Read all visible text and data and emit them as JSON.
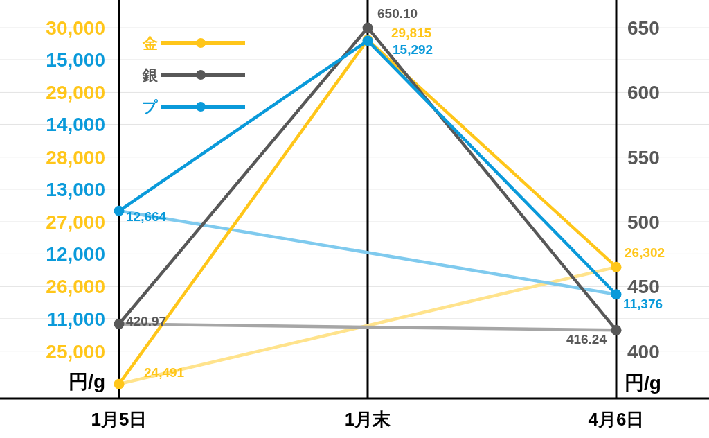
{
  "chart_data": {
    "type": "line",
    "categories": [
      "1月5日",
      "1月末",
      "4月6日"
    ],
    "ylabel": "円/g",
    "y2label": "円/g",
    "ylim": [
      24300,
      30430
    ],
    "yticks": [
      {
        "value": 25000,
        "label": "25,000"
      },
      {
        "value": 26000,
        "label": "26,000"
      },
      {
        "value": 27000,
        "label": "27,000"
      },
      {
        "value": 28000,
        "label": "28,000"
      },
      {
        "value": 29000,
        "label": "29,000"
      },
      {
        "value": 30000,
        "label": "30,000"
      }
    ],
    "y3lim": [
      9800,
      15920
    ],
    "y3ticks": [
      {
        "value": 11000,
        "label": "11,000"
      },
      {
        "value": 12000,
        "label": "12,000"
      },
      {
        "value": 13000,
        "label": "13,000"
      },
      {
        "value": 14000,
        "label": "14,000"
      },
      {
        "value": 15000,
        "label": "15,000"
      }
    ],
    "y2lim": [
      365,
      671.5
    ],
    "y2ticks": [
      400,
      450,
      500,
      550,
      600,
      650
    ],
    "series": [
      {
        "name": "金",
        "color": "#ffc61a",
        "axis": "y",
        "values": [
          24491,
          29815,
          26302
        ],
        "value_labels": [
          "24,491",
          "29,815",
          "26,302"
        ]
      },
      {
        "name": "銀",
        "color": "#585858",
        "axis": "y2",
        "values": [
          420.97,
          650.1,
          416.24
        ],
        "value_labels": [
          "420.97",
          "650.10",
          "416.24"
        ]
      },
      {
        "name": "プ",
        "color": "#0a9ada",
        "axis": "y3",
        "values": [
          12664,
          15292,
          11376
        ],
        "value_labels": [
          "12,664",
          "15,292",
          "11,376"
        ]
      },
      {
        "color": "#ffe38c",
        "axis": "y",
        "marker": "none",
        "x": [
          "1月5日",
          "4月6日"
        ],
        "values": [
          24491,
          26302
        ]
      },
      {
        "color": "#a6a6a6",
        "axis": "y2",
        "marker": "none",
        "x": [
          "1月5日",
          "4月6日"
        ],
        "values": [
          420.97,
          416.24
        ]
      },
      {
        "color": "#7fcaee",
        "axis": "y3",
        "marker": "none",
        "x": [
          "1月5日",
          "4月6日"
        ],
        "values": [
          12664,
          11376
        ]
      }
    ],
    "marker": "circle",
    "line_style": "solid",
    "grid": true,
    "legend": "top left"
  }
}
